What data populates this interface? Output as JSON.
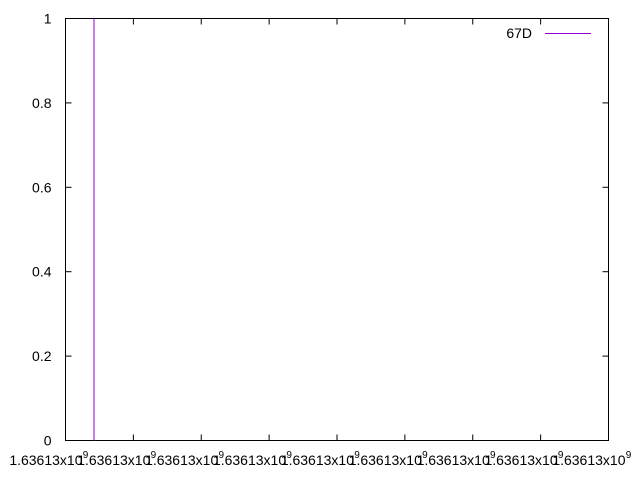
{
  "chart_data": {
    "type": "line",
    "title": "",
    "xlabel": "",
    "ylabel": "",
    "grid": false,
    "legend_position": "top-right",
    "xlim": [
      0,
      8
    ],
    "ylim": [
      0,
      1
    ],
    "y_ticks": [
      {
        "value": 0,
        "label": "0"
      },
      {
        "value": 0.2,
        "label": "0.2"
      },
      {
        "value": 0.4,
        "label": "0.4"
      },
      {
        "value": 0.6,
        "label": "0.6"
      },
      {
        "value": 0.8,
        "label": "0.8"
      },
      {
        "value": 1,
        "label": "1"
      }
    ],
    "x_ticks": [
      {
        "value": 0,
        "label": "1.63613x10",
        "exponent": "9"
      },
      {
        "value": 1,
        "label": "1.63613x10",
        "exponent": "9"
      },
      {
        "value": 2,
        "label": "1.63613x10",
        "exponent": "9"
      },
      {
        "value": 3,
        "label": "1.63613x10",
        "exponent": "9"
      },
      {
        "value": 4,
        "label": "1.63613x10",
        "exponent": "9"
      },
      {
        "value": 5,
        "label": "1.63613x10",
        "exponent": "9"
      },
      {
        "value": 6,
        "label": "1.63613x10",
        "exponent": "9"
      },
      {
        "value": 7,
        "label": "1.63613x10",
        "exponent": "9"
      },
      {
        "value": 8,
        "label": "1.63613x10",
        "exponent": "9"
      }
    ],
    "series": [
      {
        "name": "67D",
        "color": "#9400d3",
        "points": [
          {
            "x": 0.42,
            "y": 0
          },
          {
            "x": 0.42,
            "y": 1
          }
        ]
      }
    ]
  }
}
